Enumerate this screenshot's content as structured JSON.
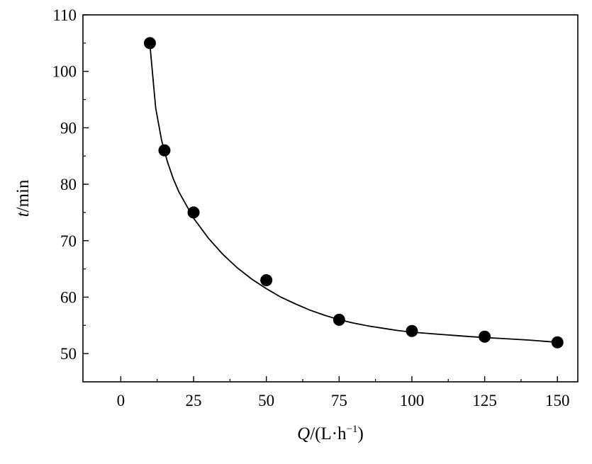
{
  "chart_data": {
    "type": "scatter",
    "title": "",
    "xlabel": {
      "var": "Q",
      "unit_open": "/(L·h",
      "unit_sup": "−1",
      "unit_close": ")"
    },
    "ylabel": {
      "var": "t",
      "unit": "/min"
    },
    "xlim": [
      -13,
      157
    ],
    "ylim": [
      45,
      110
    ],
    "x_ticks": [
      0,
      25,
      50,
      75,
      100,
      125,
      150
    ],
    "x_tick_labels": [
      "0",
      "25",
      "50",
      "75",
      "100",
      "125",
      "150"
    ],
    "y_ticks": [
      50,
      60,
      70,
      80,
      90,
      100,
      110
    ],
    "y_tick_labels": [
      "50",
      "60",
      "70",
      "80",
      "90",
      "100",
      "110"
    ],
    "grid": false,
    "legend": "none",
    "series": [
      {
        "kind": "points",
        "x": [
          10,
          15,
          25,
          50,
          75,
          100,
          125,
          150
        ],
        "y": [
          105,
          86,
          75,
          63,
          56,
          54,
          53,
          52
        ],
        "color": "#000000"
      },
      {
        "kind": "fitted-curve",
        "x": [
          10,
          12,
          14,
          16,
          18,
          20,
          25,
          30,
          35,
          40,
          45,
          50,
          55,
          60,
          65,
          70,
          75,
          80,
          85,
          90,
          95,
          100,
          110,
          120,
          130,
          140,
          150
        ],
        "y": [
          104.8,
          93.5,
          87.8,
          84.0,
          81.0,
          78.6,
          74.0,
          70.5,
          67.6,
          65.2,
          63.2,
          61.5,
          60.0,
          58.8,
          57.7,
          56.8,
          56.0,
          55.4,
          54.9,
          54.5,
          54.1,
          53.8,
          53.4,
          53.0,
          52.7,
          52.4,
          52.0
        ],
        "color": "#000000"
      }
    ]
  }
}
